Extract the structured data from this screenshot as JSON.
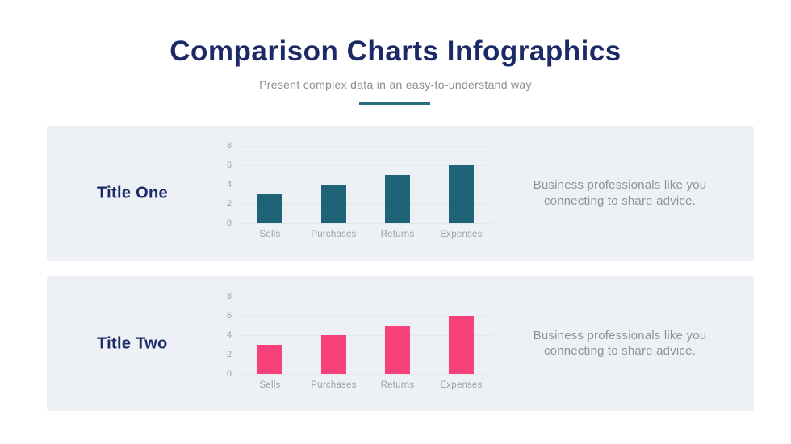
{
  "header": {
    "title": "Comparison Charts Infographics",
    "subtitle": "Present complex data in an easy-to-understand way"
  },
  "colors": {
    "navy": "#1B2A66",
    "teal": "#1E6476",
    "pink": "#F7417B",
    "accent_underline": "#266E7E",
    "panel_background": "#EDF1F6",
    "axis_text": "#9AA2AB",
    "gridline": "#E3E8ED",
    "body_text": "#8D939B"
  },
  "panels": [
    {
      "title": "Title One",
      "description": "Business professionals like you connecting to share advice."
    },
    {
      "title": "Title Two",
      "description": "Business professionals like you connecting to share advice."
    }
  ],
  "chart_data": [
    {
      "type": "bar",
      "title": "Title One",
      "categories": [
        "Sells",
        "Purchases",
        "Returns",
        "Expenses"
      ],
      "values": [
        3,
        4,
        5,
        6
      ],
      "bar_color": "#1E6476",
      "yticks": [
        0,
        2,
        4,
        6,
        8
      ],
      "ylim": [
        0,
        8
      ],
      "grid": true,
      "legend": false,
      "xlabel": "",
      "ylabel": ""
    },
    {
      "type": "bar",
      "title": "Title Two",
      "categories": [
        "Sells",
        "Purchases",
        "Returns",
        "Expenses"
      ],
      "values": [
        3,
        4,
        5,
        6
      ],
      "bar_color": "#F7417B",
      "yticks": [
        0,
        2,
        4,
        6,
        8
      ],
      "ylim": [
        0,
        8
      ],
      "grid": true,
      "legend": false,
      "xlabel": "",
      "ylabel": ""
    }
  ]
}
